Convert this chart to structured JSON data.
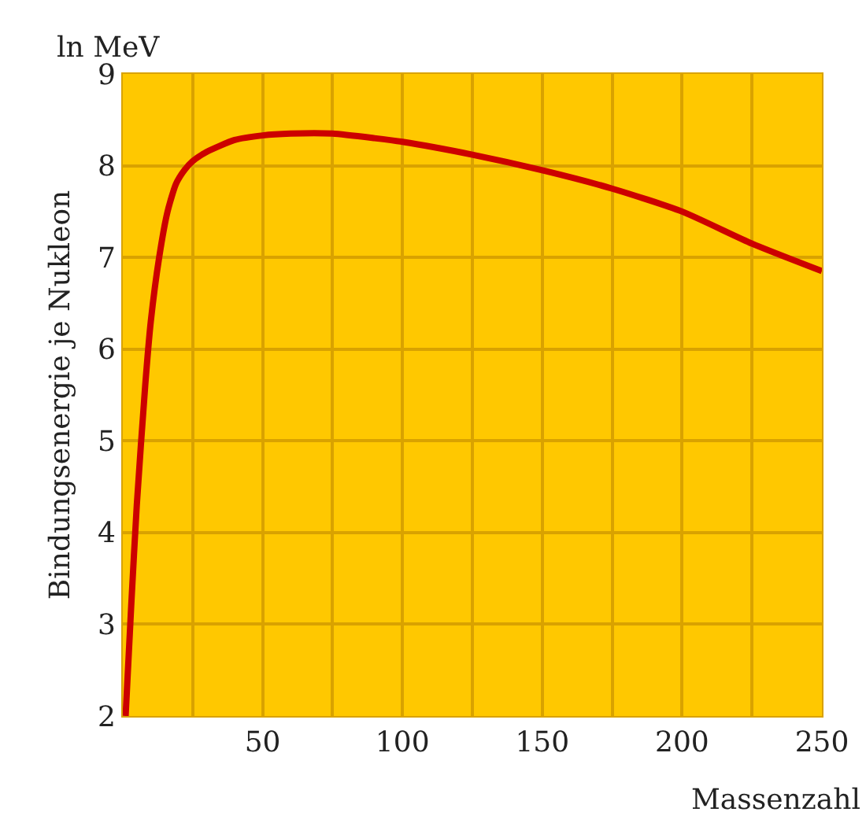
{
  "chart_data": {
    "type": "line",
    "xlabel": "Massenzahl",
    "ylabel": "Bindungsenergie je Nukleon",
    "annotations": [
      "ln MeV"
    ],
    "x": [
      1,
      3,
      5,
      8,
      10,
      13,
      16,
      19,
      22,
      25,
      30,
      40,
      50,
      60,
      75,
      90,
      100,
      125,
      150,
      175,
      200,
      225,
      250
    ],
    "series": [
      {
        "color": "#cc0000",
        "values": [
          2,
          3.2,
          4.3,
          5.6,
          6.3,
          7.0,
          7.5,
          7.8,
          7.95,
          8.05,
          8.15,
          8.28,
          8.33,
          8.35,
          8.35,
          8.3,
          8.26,
          8.12,
          7.95,
          7.75,
          7.5,
          7.15,
          6.85
        ]
      }
    ],
    "xlim": [
      0,
      250
    ],
    "xticks": [
      {
        "value": 25,
        "label": null
      },
      50,
      {
        "value": 75,
        "label": null
      },
      100,
      {
        "value": 125,
        "label": null
      },
      150,
      {
        "value": 175,
        "label": null
      },
      200,
      {
        "value": 225,
        "label": null
      },
      250
    ],
    "ylim": [
      2,
      9
    ],
    "yticks": [
      2,
      3,
      4,
      5,
      6,
      7,
      8,
      9
    ],
    "grid": true,
    "marker": "none",
    "line_style": "solid"
  }
}
